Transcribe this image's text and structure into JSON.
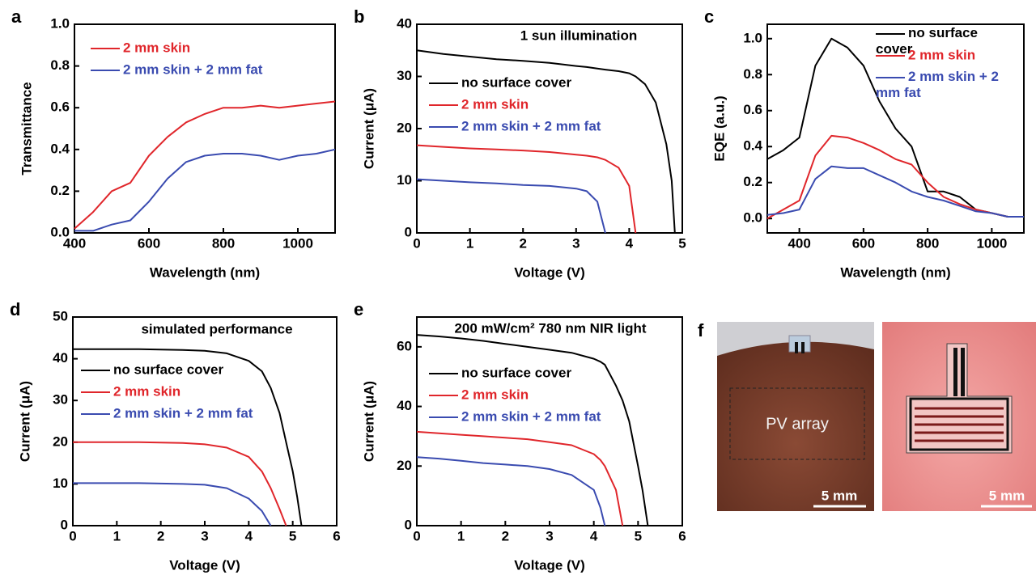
{
  "chart_data": [
    {
      "type": "line",
      "panel": "a",
      "xlabel": "Wavelength (nm)",
      "ylabel": "Transmittance",
      "x": [
        400,
        450,
        500,
        550,
        600,
        650,
        700,
        750,
        800,
        850,
        900,
        950,
        1000,
        1050,
        1100
      ],
      "series": [
        {
          "name": "2 mm skin",
          "color": "#e0262b",
          "values": [
            0.02,
            0.1,
            0.2,
            0.24,
            0.37,
            0.46,
            0.53,
            0.57,
            0.6,
            0.6,
            0.61,
            0.6,
            0.61,
            0.62,
            0.63
          ]
        },
        {
          "name": "2 mm skin + 2 mm fat",
          "color": "#3a4bb0",
          "values": [
            0.01,
            0.01,
            0.04,
            0.06,
            0.15,
            0.26,
            0.34,
            0.37,
            0.38,
            0.38,
            0.37,
            0.35,
            0.37,
            0.38,
            0.4
          ]
        }
      ],
      "xlim": [
        400,
        1100
      ],
      "xticks": [
        400,
        600,
        800,
        1000
      ],
      "ylim": [
        0,
        1
      ],
      "yticks": [
        {
          "value": 0,
          "label": "0.0"
        },
        0.2,
        0.4,
        0.6,
        0.8,
        {
          "value": 1,
          "label": "1.0"
        }
      ]
    },
    {
      "type": "line",
      "panel": "b",
      "annotation": "1 sun illumination",
      "xlabel": "Voltage (V)",
      "ylabel": "Current (μA)",
      "x": [
        0,
        0.5,
        1,
        1.5,
        2,
        2.5,
        3,
        3.2,
        3.4,
        3.55,
        3.8,
        4,
        4.12,
        4.3,
        4.5,
        4.7,
        4.8,
        4.86
      ],
      "series": [
        {
          "name": "no surface cover",
          "color": "#000000",
          "values": [
            35,
            34.3,
            33.8,
            33.3,
            33,
            32.6,
            32,
            31.8,
            31.5,
            31.3,
            31,
            30.6,
            30,
            28.5,
            25,
            17,
            10,
            0
          ]
        },
        {
          "name": "2 mm skin",
          "color": "#e0262b",
          "values": [
            16.8,
            16.5,
            16.2,
            16,
            15.8,
            15.5,
            15,
            14.8,
            14.5,
            14,
            12.5,
            9,
            0,
            null,
            null,
            null,
            null,
            null
          ]
        },
        {
          "name": "2 mm skin + 2 mm fat",
          "color": "#3a4bb0",
          "values": [
            10.3,
            10,
            9.7,
            9.5,
            9.2,
            9,
            8.5,
            8,
            6,
            0,
            null,
            null,
            null,
            null,
            null,
            null,
            null,
            null
          ]
        }
      ],
      "xlim": [
        0,
        5
      ],
      "xticks": [
        0,
        1,
        2,
        3,
        4,
        5
      ],
      "ylim": [
        0,
        40
      ],
      "yticks": [
        0,
        10,
        20,
        30,
        40
      ]
    },
    {
      "type": "line",
      "panel": "c",
      "xlabel": "Wavelength (nm)",
      "ylabel": "EQE (a.u.)",
      "x": [
        300,
        350,
        400,
        450,
        500,
        550,
        600,
        650,
        700,
        750,
        800,
        850,
        900,
        950,
        1000,
        1050,
        1100
      ],
      "series": [
        {
          "name": "no surface cover",
          "color": "#000000",
          "values": [
            0.33,
            0.38,
            0.45,
            0.85,
            1.0,
            0.95,
            0.85,
            0.65,
            0.5,
            0.4,
            0.15,
            0.15,
            0.12,
            0.05,
            0.03,
            0.01,
            0.01
          ]
        },
        {
          "name": "2 mm skin",
          "color": "#e0262b",
          "values": [
            0.0,
            0.05,
            0.1,
            0.35,
            0.46,
            0.45,
            0.42,
            0.38,
            0.33,
            0.3,
            0.2,
            0.12,
            0.08,
            0.05,
            0.03,
            0.01,
            0.01
          ]
        },
        {
          "name": "2 mm skin + 2 mm fat",
          "color": "#3a4bb0",
          "values": [
            0.02,
            0.03,
            0.05,
            0.22,
            0.29,
            0.28,
            0.28,
            0.24,
            0.2,
            0.15,
            0.12,
            0.1,
            0.07,
            0.04,
            0.03,
            0.01,
            0.01
          ]
        }
      ],
      "xlim": [
        300,
        1100
      ],
      "xticks": [
        400,
        600,
        800,
        1000
      ],
      "ylim": [
        -0.08,
        1.08
      ],
      "yticks": [
        {
          "value": 0,
          "label": "0.0"
        },
        0.2,
        0.4,
        0.6,
        0.8,
        {
          "value": 1,
          "label": "1.0"
        }
      ]
    },
    {
      "type": "line",
      "panel": "d",
      "annotation": "simulated performance",
      "xlabel": "Voltage (V)",
      "ylabel": "Current (μA)",
      "x": [
        0,
        0.5,
        1,
        1.5,
        2,
        2.5,
        3,
        3.5,
        4,
        4.3,
        4.5,
        4.7,
        4.85,
        5,
        5.1,
        5.2
      ],
      "series": [
        {
          "name": "no surface cover",
          "color": "#000000",
          "values": [
            42.3,
            42.3,
            42.3,
            42.3,
            42.2,
            42.1,
            41.9,
            41.3,
            39.5,
            37,
            33,
            27,
            20,
            13,
            7,
            0
          ]
        },
        {
          "name": "2 mm skin",
          "color": "#e0262b",
          "values": [
            20,
            20,
            20,
            20,
            19.9,
            19.8,
            19.5,
            18.7,
            16.5,
            13,
            9,
            4,
            0,
            null,
            null,
            null
          ]
        },
        {
          "name": "2 mm skin + 2 mm fat",
          "color": "#3a4bb0",
          "values": [
            10.2,
            10.2,
            10.2,
            10.2,
            10.1,
            10,
            9.8,
            9,
            6.5,
            3.5,
            0,
            null,
            null,
            null,
            null,
            null
          ]
        }
      ],
      "xlim": [
        0,
        6
      ],
      "xticks": [
        0,
        1,
        2,
        3,
        4,
        5,
        6
      ],
      "ylim": [
        0,
        50
      ],
      "yticks": [
        0,
        10,
        20,
        30,
        40,
        50
      ]
    },
    {
      "type": "line",
      "panel": "e",
      "annotation": "200 mW/cm² 780 nm NIR light",
      "xlabel": "Voltage (V)",
      "ylabel": "Current (μA)",
      "x": [
        0,
        0.5,
        1,
        1.5,
        2,
        2.5,
        3,
        3.5,
        4,
        4.15,
        4.25,
        4.5,
        4.65,
        4.8,
        5,
        5.1,
        5.22
      ],
      "series": [
        {
          "name": "no surface cover",
          "color": "#000000",
          "values": [
            64,
            63.5,
            62.8,
            62,
            61,
            60,
            59,
            58,
            56,
            55,
            54,
            47,
            42,
            35,
            20,
            12,
            0
          ]
        },
        {
          "name": "2 mm skin",
          "color": "#e0262b",
          "values": [
            31.5,
            31,
            30.5,
            30,
            29.5,
            29,
            28,
            27,
            24,
            22,
            20,
            12,
            0,
            null,
            null,
            null,
            null
          ]
        },
        {
          "name": "2 mm skin + 2 mm fat",
          "color": "#3a4bb0",
          "values": [
            23,
            22.5,
            21.8,
            21,
            20.5,
            20,
            19,
            17,
            12,
            6,
            0,
            null,
            null,
            null,
            null,
            null,
            null
          ]
        }
      ],
      "xlim": [
        0,
        6
      ],
      "xticks": [
        0,
        1,
        2,
        3,
        4,
        5,
        6
      ],
      "ylim": [
        0,
        70
      ],
      "yticks": [
        0,
        20,
        40,
        60
      ]
    }
  ],
  "photos": {
    "panel": "f",
    "region_label": "PV array",
    "scale_bars": [
      "5 mm",
      "5 mm"
    ]
  }
}
